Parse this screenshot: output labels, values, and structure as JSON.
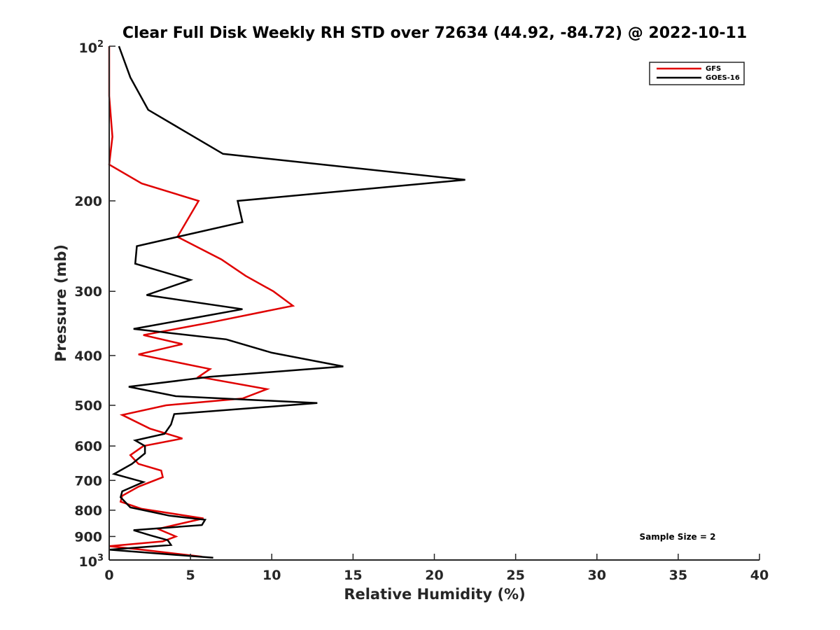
{
  "chart_data": {
    "type": "line",
    "title": "Clear Full Disk Weekly RH STD over 72634 (44.92, -84.72) @ 2022-10-11",
    "xlabel": "Relative Humidity (%)",
    "ylabel": "Pressure (mb)",
    "xlim": [
      0,
      40
    ],
    "ylim": [
      100,
      1000
    ],
    "yscale": "log",
    "y_reversed": true,
    "x_ticks": [
      0,
      5,
      10,
      15,
      20,
      25,
      30,
      35,
      40
    ],
    "y_ticks": [
      {
        "value": 100,
        "label": "10",
        "sup": "2"
      },
      {
        "value": 200,
        "label": "200"
      },
      {
        "value": 300,
        "label": "300"
      },
      {
        "value": 400,
        "label": "400"
      },
      {
        "value": 500,
        "label": "500"
      },
      {
        "value": 600,
        "label": "600"
      },
      {
        "value": 700,
        "label": "700"
      },
      {
        "value": 800,
        "label": "800"
      },
      {
        "value": 900,
        "label": "900"
      },
      {
        "value": 1000,
        "label": "10",
        "sup": "3"
      }
    ],
    "legend_position": "top-right",
    "annotation": "Sample Size = 2",
    "series": [
      {
        "name": "GFS",
        "color": "#e00000",
        "points": [
          [
            0.0,
            100
          ],
          [
            0.0,
            125
          ],
          [
            0.2,
            150
          ],
          [
            0.0,
            170
          ],
          [
            2.0,
            185
          ],
          [
            5.5,
            200
          ],
          [
            4.2,
            235
          ],
          [
            6.9,
            260
          ],
          [
            8.4,
            280
          ],
          [
            10.1,
            300
          ],
          [
            11.3,
            320
          ],
          [
            6.2,
            345
          ],
          [
            2.1,
            365
          ],
          [
            4.5,
            380
          ],
          [
            1.8,
            398
          ],
          [
            6.2,
            425
          ],
          [
            5.5,
            440
          ],
          [
            9.7,
            465
          ],
          [
            8.2,
            485
          ],
          [
            3.5,
            500
          ],
          [
            0.8,
            522
          ],
          [
            2.5,
            555
          ],
          [
            4.5,
            580
          ],
          [
            2.1,
            600
          ],
          [
            1.3,
            625
          ],
          [
            1.8,
            650
          ],
          [
            3.2,
            670
          ],
          [
            3.3,
            690
          ],
          [
            1.8,
            720
          ],
          [
            0.8,
            750
          ],
          [
            0.7,
            770
          ],
          [
            2.0,
            795
          ],
          [
            5.8,
            830
          ],
          [
            3.0,
            870
          ],
          [
            4.1,
            900
          ],
          [
            3.3,
            920
          ],
          [
            0.0,
            940
          ],
          [
            2.0,
            955
          ],
          [
            5.7,
            985
          ]
        ]
      },
      {
        "name": "GOES-16",
        "color": "#000000",
        "points": [
          [
            0.6,
            100
          ],
          [
            1.3,
            115
          ],
          [
            2.4,
            133
          ],
          [
            7.0,
            162
          ],
          [
            21.9,
            182
          ],
          [
            7.9,
            200
          ],
          [
            8.2,
            220
          ],
          [
            1.7,
            245
          ],
          [
            1.6,
            265
          ],
          [
            5.0,
            285
          ],
          [
            2.3,
            305
          ],
          [
            8.2,
            325
          ],
          [
            1.5,
            355
          ],
          [
            7.2,
            372
          ],
          [
            10.0,
            395
          ],
          [
            14.4,
            420
          ],
          [
            6.2,
            440
          ],
          [
            1.2,
            460
          ],
          [
            4.1,
            480
          ],
          [
            12.8,
            495
          ],
          [
            4.0,
            520
          ],
          [
            3.8,
            545
          ],
          [
            3.4,
            568
          ],
          [
            1.6,
            585
          ],
          [
            2.2,
            600
          ],
          [
            2.2,
            620
          ],
          [
            1.4,
            650
          ],
          [
            0.3,
            680
          ],
          [
            2.1,
            705
          ],
          [
            0.8,
            735
          ],
          [
            0.7,
            755
          ],
          [
            1.3,
            790
          ],
          [
            3.7,
            820
          ],
          [
            5.9,
            835
          ],
          [
            5.7,
            855
          ],
          [
            1.5,
            875
          ],
          [
            2.5,
            895
          ],
          [
            3.6,
            915
          ],
          [
            3.8,
            935
          ],
          [
            0.0,
            955
          ],
          [
            6.4,
            990
          ]
        ]
      }
    ]
  }
}
